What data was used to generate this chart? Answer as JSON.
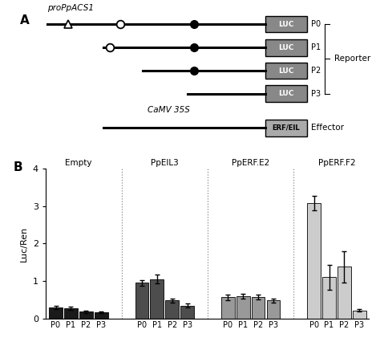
{
  "panel_b": {
    "groups": [
      "Empty",
      "PpEIL3",
      "PpERF.E2",
      "PpERF.F2"
    ],
    "bar_labels": [
      "P0",
      "P1",
      "P2",
      "P3"
    ],
    "values": {
      "Empty": [
        0.3,
        0.28,
        0.18,
        0.17
      ],
      "PpEIL3": [
        0.95,
        1.05,
        0.48,
        0.35
      ],
      "PpERF.E2": [
        0.57,
        0.6,
        0.57,
        0.48
      ],
      "PpERF.F2": [
        3.08,
        1.1,
        1.38,
        0.22
      ]
    },
    "errors": {
      "Empty": [
        0.05,
        0.04,
        0.03,
        0.03
      ],
      "PpEIL3": [
        0.07,
        0.12,
        0.06,
        0.05
      ],
      "PpERF.E2": [
        0.07,
        0.07,
        0.06,
        0.05
      ],
      "PpERF.F2": [
        0.2,
        0.33,
        0.42,
        0.04
      ]
    },
    "colors": {
      "Empty": "#1a1a1a",
      "PpEIL3": "#4d4d4d",
      "PpERF.E2": "#999999",
      "PpERF.F2": "#cccccc"
    },
    "ylabel": "Luc/Ren",
    "ylim": [
      0,
      4
    ],
    "yticks": [
      0,
      1,
      2,
      3,
      4
    ]
  },
  "panel_a": {
    "title": "proPpACS1",
    "camv_label": "CaMV 35S",
    "reporter_label": "Reporter",
    "effector_label": "Effector",
    "luc_label": "LUC",
    "erf_label": "ERF/EIL",
    "luc_color": "#888888",
    "erf_color": "#aaaaaa"
  }
}
